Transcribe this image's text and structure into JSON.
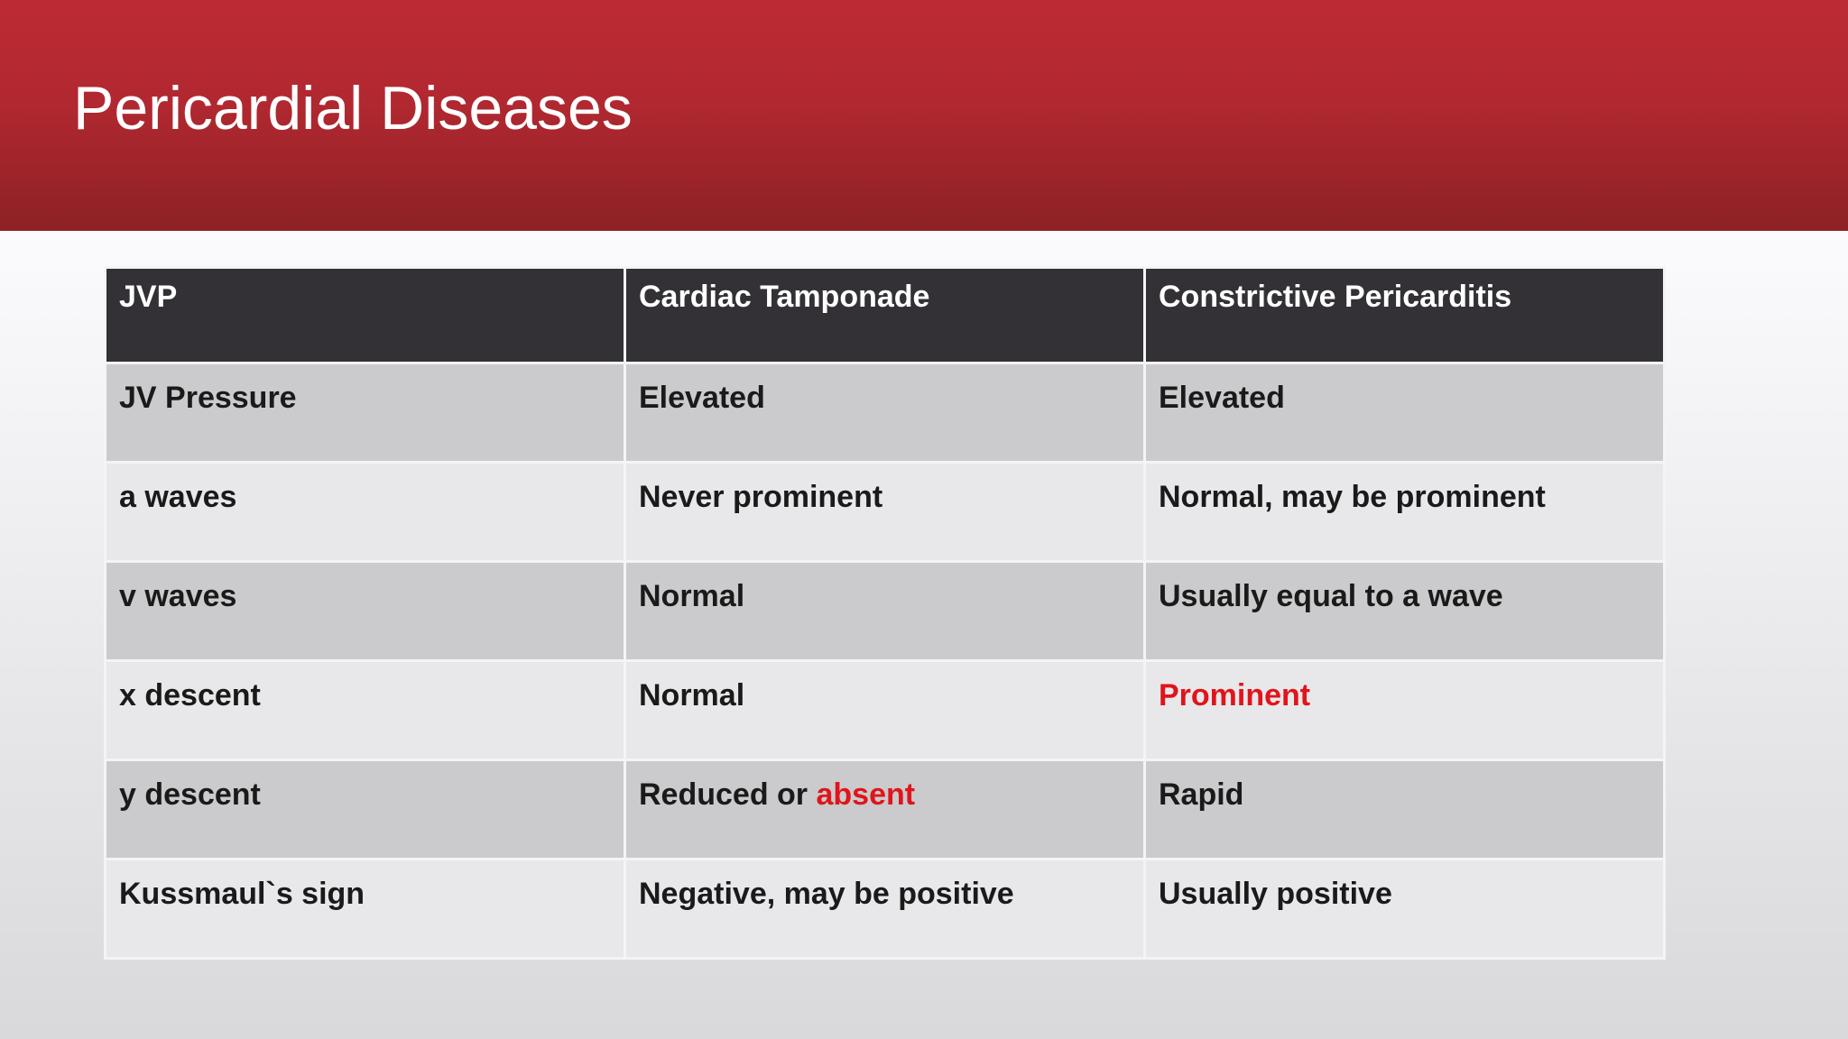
{
  "header": {
    "title": "Pericardial Diseases"
  },
  "table": {
    "columns": [
      "JVP",
      "Cardiac Tamponade",
      "Constrictive Pericarditis"
    ],
    "rows": [
      [
        "JV Pressure",
        "Elevated",
        "Elevated"
      ],
      [
        "a waves",
        "Never prominent",
        "Normal, may be prominent"
      ],
      [
        "v waves",
        "Normal",
        "Usually equal to a wave"
      ],
      [
        "x descent",
        "Normal",
        "Prominent"
      ],
      [
        "y descent",
        [
          "Reduced or ",
          "absent"
        ],
        "Rapid"
      ],
      [
        "Kussmaul`s sign",
        "Negative, may be positive",
        "Usually positive"
      ]
    ]
  }
}
